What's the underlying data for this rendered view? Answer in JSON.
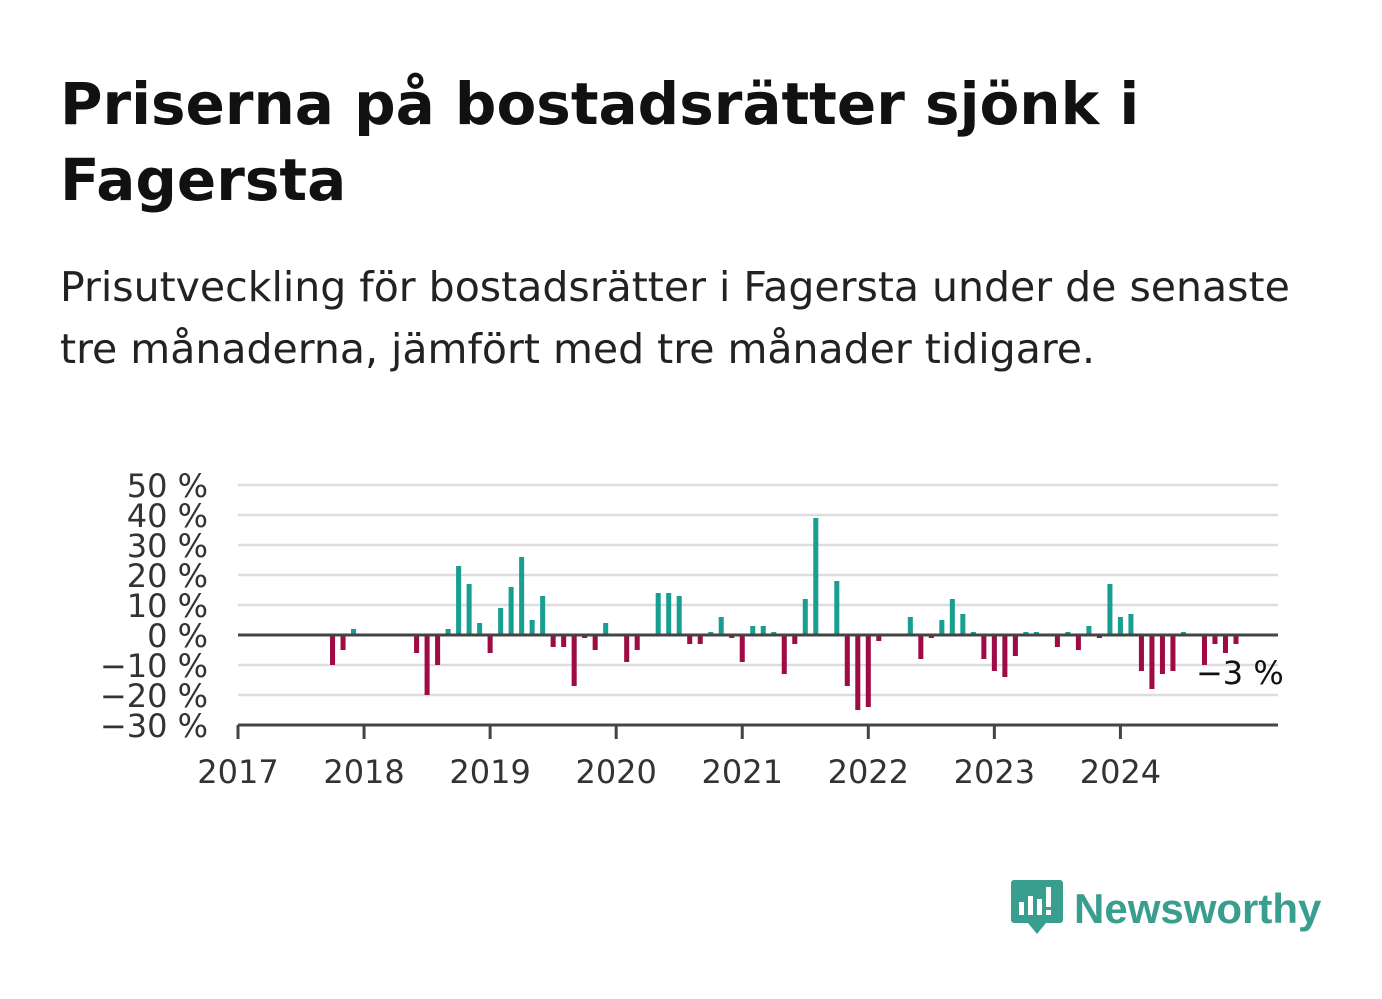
{
  "title": "Priserna på bostadsrätter sjönk i Fagersta",
  "subtitle": "Prisutveckling för bostadsrätter i Fagersta under de senaste tre månaderna, jämfört med tre månader tidigare.",
  "brand": {
    "name": "Newsworthy",
    "color": "#3a9e8f",
    "icon": "newsworthy-logo-icon"
  },
  "colors": {
    "positive": "#1a9e91",
    "negative": "#9e0b45",
    "grid": "#dddddd",
    "axis": "#444444"
  },
  "chart_data": {
    "type": "bar",
    "x_start": "2017-01",
    "x_end": "2024-12",
    "xlim": [
      2017,
      2025.25
    ],
    "x_ticks": [
      "2017",
      "2018",
      "2019",
      "2020",
      "2021",
      "2022",
      "2023",
      "2024"
    ],
    "ylim": [
      -30,
      50
    ],
    "y_ticks": [
      "50 %",
      "40 %",
      "30 %",
      "20 %",
      "10 %",
      "0 %",
      "−10 %",
      "−20 %",
      "−30 %"
    ],
    "grid": true,
    "annotation": "−3 %",
    "values": [
      null,
      null,
      null,
      null,
      null,
      null,
      null,
      null,
      null,
      -10,
      -5,
      2,
      null,
      null,
      null,
      null,
      null,
      -6,
      -20,
      -10,
      2,
      23,
      17,
      4,
      -6,
      9,
      16,
      26,
      5,
      13,
      -4,
      -4,
      -17,
      -1,
      -5,
      4,
      0,
      -9,
      -5,
      0,
      14,
      14,
      13,
      -3,
      -3,
      1,
      6,
      -1,
      -9,
      3,
      3,
      1,
      -13,
      -3,
      12,
      39,
      0,
      18,
      -17,
      -25,
      -24,
      -2,
      0,
      0,
      6,
      -8,
      -1,
      5,
      12,
      7,
      1,
      -8,
      -12,
      -14,
      -7,
      1,
      1,
      0,
      -4,
      1,
      -5,
      3,
      -1,
      17,
      6,
      7,
      -12,
      -18,
      -13,
      -12,
      1,
      0,
      -10,
      -3,
      -6,
      -3
    ]
  }
}
